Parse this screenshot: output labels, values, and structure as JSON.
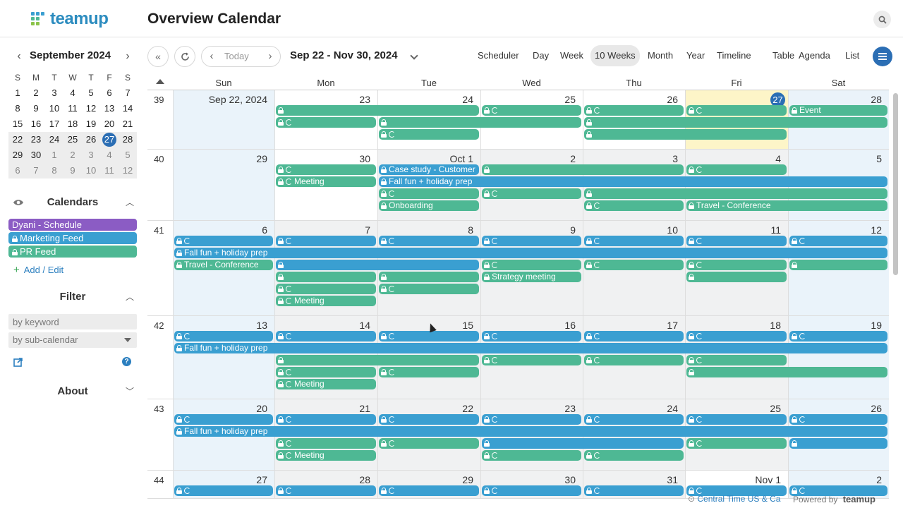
{
  "app": {
    "logo_text": "teamup",
    "page_title": "Overview Calendar"
  },
  "colors": {
    "blue": "#3a9fd1",
    "teal": "#4eb894",
    "purple": "#8b5cc4",
    "today_circle": "#2b6eb4",
    "today_cell": "#fdf5c8",
    "weekend": "#eaf3fa"
  },
  "sidebar": {
    "mini_month": "September 2024",
    "dow": [
      "S",
      "M",
      "T",
      "W",
      "T",
      "F",
      "S"
    ],
    "weeks": [
      [
        "1",
        "2",
        "3",
        "4",
        "5",
        "6",
        "7"
      ],
      [
        "8",
        "9",
        "10",
        "11",
        "12",
        "13",
        "14"
      ],
      [
        "15",
        "16",
        "17",
        "18",
        "19",
        "20",
        "21"
      ],
      [
        "22",
        "23",
        "24",
        "25",
        "26",
        "27",
        "28"
      ],
      [
        "29",
        "30",
        "1",
        "2",
        "3",
        "4",
        "5"
      ],
      [
        "6",
        "7",
        "8",
        "9",
        "10",
        "11",
        "12"
      ]
    ],
    "calendars_title": "Calendars",
    "calendars": [
      {
        "label": "Dyani - Schedule",
        "color": "#8b5cc4",
        "locked": false
      },
      {
        "label": "Marketing Feed",
        "color": "#3a9fd1",
        "locked": true
      },
      {
        "label": "PR Feed",
        "color": "#4eb894",
        "locked": true
      }
    ],
    "add_edit": "Add / Edit",
    "filter_title": "Filter",
    "keyword_placeholder": "by keyword",
    "subcal_placeholder": "by sub-calendar",
    "about_title": "About",
    "help_glyph": "?"
  },
  "toolbar": {
    "today": "Today",
    "date_range": "Sep 22 - Nov 30, 2024",
    "views": [
      "Scheduler",
      "Day",
      "Week",
      "10 Weeks",
      "Month",
      "Year",
      "Timeline",
      "Table",
      "Agenda",
      "List"
    ],
    "active_view": "10 Weeks"
  },
  "calendar": {
    "dow": [
      "Sun",
      "Mon",
      "Tue",
      "Wed",
      "Thu",
      "Fri",
      "Sat"
    ],
    "weeks": [
      {
        "num": "39",
        "days": [
          "Sep 22, 2024",
          "23",
          "24",
          "25",
          "26",
          "27",
          "28"
        ],
        "today_index": 5,
        "events": [
          {
            "s": 1,
            "e": 2,
            "r": 0,
            "c": "teal",
            "i": "l",
            "t": ""
          },
          {
            "s": 3,
            "e": 3,
            "r": 0,
            "c": "teal",
            "i": "lr",
            "t": ""
          },
          {
            "s": 4,
            "e": 4,
            "r": 0,
            "c": "teal",
            "i": "lr",
            "t": ""
          },
          {
            "s": 5,
            "e": 5,
            "r": 0,
            "c": "teal",
            "i": "lr",
            "t": ""
          },
          {
            "s": 6,
            "e": 6,
            "r": 0,
            "c": "teal",
            "i": "l",
            "t": "Event"
          },
          {
            "s": 1,
            "e": 1,
            "r": 1,
            "c": "teal",
            "i": "lr",
            "t": ""
          },
          {
            "s": 2,
            "e": 3,
            "r": 1,
            "c": "teal",
            "i": "l",
            "t": ""
          },
          {
            "s": 4,
            "e": 6,
            "r": 1,
            "c": "teal",
            "i": "l",
            "t": ""
          },
          {
            "s": 2,
            "e": 2,
            "r": 2,
            "c": "teal",
            "i": "lr",
            "t": ""
          },
          {
            "s": 4,
            "e": 5,
            "r": 2,
            "c": "teal",
            "i": "l",
            "t": ""
          }
        ]
      },
      {
        "num": "40",
        "days": [
          "29",
          "30",
          "Oct 1",
          "2",
          "3",
          "4",
          "5"
        ],
        "events": [
          {
            "s": 1,
            "e": 1,
            "r": 0,
            "c": "teal",
            "i": "lr",
            "t": ""
          },
          {
            "s": 2,
            "e": 2,
            "r": 0,
            "c": "blue",
            "i": "l",
            "t": "Case study - Customer"
          },
          {
            "s": 3,
            "e": 4,
            "r": 0,
            "c": "teal",
            "i": "l",
            "t": ""
          },
          {
            "s": 5,
            "e": 5,
            "r": 0,
            "c": "teal",
            "i": "lr",
            "t": ""
          },
          {
            "s": 1,
            "e": 1,
            "r": 1,
            "c": "teal",
            "i": "lr",
            "t": "Meeting"
          },
          {
            "s": 2,
            "e": 6,
            "r": 1,
            "c": "blue",
            "i": "l",
            "t": "Fall fun + holiday prep"
          },
          {
            "s": 2,
            "e": 2,
            "r": 2,
            "c": "teal",
            "i": "lr",
            "t": ""
          },
          {
            "s": 3,
            "e": 3,
            "r": 2,
            "c": "teal",
            "i": "lr",
            "t": ""
          },
          {
            "s": 4,
            "e": 6,
            "r": 2,
            "c": "teal",
            "i": "l",
            "t": ""
          },
          {
            "s": 2,
            "e": 2,
            "r": 3,
            "c": "teal",
            "i": "l",
            "t": "Onboarding"
          },
          {
            "s": 4,
            "e": 4,
            "r": 3,
            "c": "teal",
            "i": "lr",
            "t": ""
          },
          {
            "s": 5,
            "e": 6,
            "r": 3,
            "c": "teal",
            "i": "l",
            "t": "Travel - Conference"
          }
        ]
      },
      {
        "num": "41",
        "days": [
          "6",
          "7",
          "8",
          "9",
          "10",
          "11",
          "12"
        ],
        "events": [
          {
            "s": 0,
            "e": 0,
            "r": 0,
            "c": "blue",
            "i": "lr",
            "t": ""
          },
          {
            "s": 1,
            "e": 1,
            "r": 0,
            "c": "blue",
            "i": "lr",
            "t": ""
          },
          {
            "s": 2,
            "e": 2,
            "r": 0,
            "c": "blue",
            "i": "lr",
            "t": ""
          },
          {
            "s": 3,
            "e": 3,
            "r": 0,
            "c": "blue",
            "i": "lr",
            "t": ""
          },
          {
            "s": 4,
            "e": 4,
            "r": 0,
            "c": "blue",
            "i": "lr",
            "t": ""
          },
          {
            "s": 5,
            "e": 5,
            "r": 0,
            "c": "blue",
            "i": "lr",
            "t": ""
          },
          {
            "s": 6,
            "e": 6,
            "r": 0,
            "c": "blue",
            "i": "lr",
            "t": ""
          },
          {
            "s": 0,
            "e": 6,
            "r": 1,
            "c": "blue",
            "i": "l",
            "t": "Fall fun + holiday prep"
          },
          {
            "s": 0,
            "e": 0,
            "r": 2,
            "c": "teal",
            "i": "l",
            "t": "Travel - Conference"
          },
          {
            "s": 1,
            "e": 2,
            "r": 2,
            "c": "blue",
            "i": "l",
            "t": ""
          },
          {
            "s": 3,
            "e": 3,
            "r": 2,
            "c": "teal",
            "i": "lr",
            "t": ""
          },
          {
            "s": 4,
            "e": 4,
            "r": 2,
            "c": "teal",
            "i": "lr",
            "t": ""
          },
          {
            "s": 5,
            "e": 5,
            "r": 2,
            "c": "teal",
            "i": "lr",
            "t": ""
          },
          {
            "s": 6,
            "e": 6,
            "r": 2,
            "c": "teal",
            "i": "l",
            "t": ""
          },
          {
            "s": 1,
            "e": 1,
            "r": 3,
            "c": "teal",
            "i": "l",
            "t": ""
          },
          {
            "s": 2,
            "e": 2,
            "r": 3,
            "c": "teal",
            "i": "l",
            "t": ""
          },
          {
            "s": 3,
            "e": 3,
            "r": 3,
            "c": "teal",
            "i": "l",
            "t": "Strategy meeting"
          },
          {
            "s": 5,
            "e": 5,
            "r": 3,
            "c": "teal",
            "i": "l",
            "t": ""
          },
          {
            "s": 1,
            "e": 1,
            "r": 4,
            "c": "teal",
            "i": "lr",
            "t": ""
          },
          {
            "s": 2,
            "e": 2,
            "r": 4,
            "c": "teal",
            "i": "lr",
            "t": ""
          },
          {
            "s": 1,
            "e": 1,
            "r": 5,
            "c": "teal",
            "i": "lr",
            "t": "Meeting"
          }
        ]
      },
      {
        "num": "42",
        "days": [
          "13",
          "14",
          "15",
          "16",
          "17",
          "18",
          "19"
        ],
        "events": [
          {
            "s": 0,
            "e": 0,
            "r": 0,
            "c": "blue",
            "i": "lr",
            "t": ""
          },
          {
            "s": 1,
            "e": 1,
            "r": 0,
            "c": "blue",
            "i": "lr",
            "t": ""
          },
          {
            "s": 2,
            "e": 2,
            "r": 0,
            "c": "blue",
            "i": "lr",
            "t": ""
          },
          {
            "s": 3,
            "e": 3,
            "r": 0,
            "c": "blue",
            "i": "lr",
            "t": ""
          },
          {
            "s": 4,
            "e": 4,
            "r": 0,
            "c": "blue",
            "i": "lr",
            "t": ""
          },
          {
            "s": 5,
            "e": 5,
            "r": 0,
            "c": "blue",
            "i": "lr",
            "t": ""
          },
          {
            "s": 6,
            "e": 6,
            "r": 0,
            "c": "blue",
            "i": "lr",
            "t": ""
          },
          {
            "s": 0,
            "e": 6,
            "r": 1,
            "c": "blue",
            "i": "l",
            "t": "Fall fun + holiday prep"
          },
          {
            "s": 1,
            "e": 2,
            "r": 2,
            "c": "teal",
            "i": "l",
            "t": ""
          },
          {
            "s": 3,
            "e": 3,
            "r": 2,
            "c": "teal",
            "i": "lr",
            "t": ""
          },
          {
            "s": 4,
            "e": 4,
            "r": 2,
            "c": "teal",
            "i": "lr",
            "t": ""
          },
          {
            "s": 5,
            "e": 5,
            "r": 2,
            "c": "teal",
            "i": "lr",
            "t": ""
          },
          {
            "s": 1,
            "e": 1,
            "r": 3,
            "c": "teal",
            "i": "lr",
            "t": ""
          },
          {
            "s": 2,
            "e": 2,
            "r": 3,
            "c": "teal",
            "i": "lr",
            "t": ""
          },
          {
            "s": 5,
            "e": 6,
            "r": 3,
            "c": "teal",
            "i": "l",
            "t": ""
          },
          {
            "s": 1,
            "e": 1,
            "r": 4,
            "c": "teal",
            "i": "lr",
            "t": "Meeting"
          }
        ]
      },
      {
        "num": "43",
        "days": [
          "20",
          "21",
          "22",
          "23",
          "24",
          "25",
          "26"
        ],
        "events": [
          {
            "s": 0,
            "e": 0,
            "r": 0,
            "c": "blue",
            "i": "lr",
            "t": ""
          },
          {
            "s": 1,
            "e": 1,
            "r": 0,
            "c": "blue",
            "i": "lr",
            "t": ""
          },
          {
            "s": 2,
            "e": 2,
            "r": 0,
            "c": "blue",
            "i": "lr",
            "t": ""
          },
          {
            "s": 3,
            "e": 3,
            "r": 0,
            "c": "blue",
            "i": "lr",
            "t": ""
          },
          {
            "s": 4,
            "e": 4,
            "r": 0,
            "c": "blue",
            "i": "lr",
            "t": ""
          },
          {
            "s": 5,
            "e": 5,
            "r": 0,
            "c": "blue",
            "i": "lr",
            "t": ""
          },
          {
            "s": 6,
            "e": 6,
            "r": 0,
            "c": "blue",
            "i": "lr",
            "t": ""
          },
          {
            "s": 0,
            "e": 6,
            "r": 1,
            "c": "blue",
            "i": "l",
            "t": "Fall fun + holiday prep"
          },
          {
            "s": 1,
            "e": 1,
            "r": 2,
            "c": "teal",
            "i": "lr",
            "t": ""
          },
          {
            "s": 2,
            "e": 2,
            "r": 2,
            "c": "teal",
            "i": "lr",
            "t": ""
          },
          {
            "s": 3,
            "e": 4,
            "r": 2,
            "c": "blue",
            "i": "l",
            "t": ""
          },
          {
            "s": 5,
            "e": 5,
            "r": 2,
            "c": "teal",
            "i": "lr",
            "t": ""
          },
          {
            "s": 6,
            "e": 6,
            "r": 2,
            "c": "blue",
            "i": "l",
            "t": ""
          },
          {
            "s": 1,
            "e": 1,
            "r": 3,
            "c": "teal",
            "i": "lr",
            "t": "Meeting"
          },
          {
            "s": 3,
            "e": 3,
            "r": 3,
            "c": "teal",
            "i": "lr",
            "t": ""
          },
          {
            "s": 4,
            "e": 4,
            "r": 3,
            "c": "teal",
            "i": "lr",
            "t": ""
          }
        ]
      },
      {
        "num": "44",
        "days": [
          "27",
          "28",
          "29",
          "30",
          "31",
          "Nov 1",
          "2"
        ],
        "events": [
          {
            "s": 0,
            "e": 0,
            "r": 0,
            "c": "blue",
            "i": "lr",
            "t": ""
          },
          {
            "s": 1,
            "e": 1,
            "r": 0,
            "c": "blue",
            "i": "lr",
            "t": ""
          },
          {
            "s": 2,
            "e": 2,
            "r": 0,
            "c": "blue",
            "i": "lr",
            "t": ""
          },
          {
            "s": 3,
            "e": 3,
            "r": 0,
            "c": "blue",
            "i": "lr",
            "t": ""
          },
          {
            "s": 4,
            "e": 4,
            "r": 0,
            "c": "blue",
            "i": "lr",
            "t": ""
          },
          {
            "s": 5,
            "e": 5,
            "r": 0,
            "c": "blue",
            "i": "lr",
            "t": ""
          },
          {
            "s": 6,
            "e": 6,
            "r": 0,
            "c": "blue",
            "i": "lr",
            "t": ""
          }
        ]
      }
    ]
  },
  "footer": {
    "timezone": "Central Time US & Ca",
    "powered_by": "Powered by",
    "brand": "teamup"
  }
}
